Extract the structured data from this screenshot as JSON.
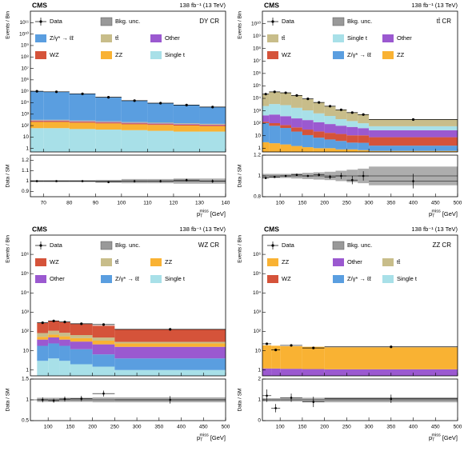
{
  "chart_data": [
    {
      "type": "histogram",
      "experiment": "CMS",
      "lumi": "138 fb⁻¹ (13 TeV)",
      "region": "DY CR",
      "y_label": "Events / Bin",
      "ratio_label": "Data / SM",
      "x_label": [
        "p",
        "T",
        "miss",
        "[GeV]"
      ],
      "bins": [
        65,
        70,
        80,
        90,
        100,
        110,
        120,
        130,
        140
      ],
      "xlim": [
        65,
        140
      ],
      "xticks": [
        70,
        80,
        90,
        100,
        110,
        120,
        130,
        140
      ],
      "log_y": true,
      "ylim": [
        0.5,
        1000000000000.0
      ],
      "yticks": [
        1,
        10,
        {
          "value": 100,
          "label": "10²"
        },
        {
          "value": 1000,
          "label": "10³"
        },
        {
          "value": 10000,
          "label": "10⁴"
        },
        {
          "value": 100000,
          "label": "10⁵"
        },
        {
          "value": 1000000,
          "label": "10⁶"
        },
        {
          "value": 10000000,
          "label": "10⁷"
        },
        {
          "value": 100000000,
          "label": "10⁸"
        },
        {
          "value": 1000000000,
          "label": "10⁹"
        },
        {
          "value": 10000000000,
          "label": "10¹⁰"
        },
        {
          "value": 100000000000,
          "label": "10¹¹"
        }
      ],
      "data": {
        "name": "Data",
        "values": [
          100300,
          90200,
          60150,
          29900,
          15180,
          9150,
          6230,
          4180
        ]
      },
      "unc_name": "Bkg. unc.",
      "series": [
        {
          "name": "Z/γ* → ℓℓ",
          "color": "#5a9ee0",
          "values": [
            100000,
            90000,
            60000,
            30000,
            15000,
            9000,
            6000,
            4000
          ]
        },
        {
          "name": "tt̄",
          "color": "#c8bd8a",
          "values": [
            40,
            40,
            35,
            30,
            28,
            25,
            22,
            20
          ]
        },
        {
          "name": "Other",
          "color": "#9b59d0",
          "values": [
            30,
            30,
            25,
            22,
            20,
            18,
            15,
            14
          ]
        },
        {
          "name": "WZ",
          "color": "#d5533a",
          "values": [
            40,
            40,
            35,
            30,
            25,
            22,
            20,
            18
          ]
        },
        {
          "name": "ZZ",
          "color": "#f9b233",
          "values": [
            150,
            150,
            130,
            110,
            90,
            80,
            70,
            60
          ]
        },
        {
          "name": "Single t",
          "color": "#a8e0e8",
          "values": [
            60,
            60,
            50,
            45,
            40,
            35,
            30,
            30
          ]
        }
      ],
      "ratio": {
        "values": [
          1.0,
          1.0,
          1.0,
          0.99,
          1.0,
          1.0,
          1.01,
          1.0
        ],
        "errors": [
          0.004,
          0.004,
          0.005,
          0.006,
          0.008,
          0.01,
          0.013,
          0.016
        ],
        "unc": [
          0.01,
          0.01,
          0.01,
          0.012,
          0.02,
          0.02,
          0.025,
          0.025
        ],
        "ylim": [
          0.85,
          1.25
        ],
        "yticks": [
          0.9,
          1,
          1.1,
          1.2
        ]
      }
    },
    {
      "type": "histogram",
      "experiment": "CMS",
      "lumi": "138 fb⁻¹ (13 TeV)",
      "region": "tt̄ CR",
      "y_label": "Events / Bin",
      "ratio_label": "Data / SM",
      "x_label": [
        "p",
        "T",
        "miss",
        "[GeV]"
      ],
      "bins": [
        60,
        75,
        100,
        125,
        150,
        175,
        200,
        225,
        250,
        275,
        300,
        500
      ],
      "xlim": [
        60,
        500
      ],
      "xticks": [
        100,
        150,
        200,
        250,
        300,
        350,
        400,
        450,
        500
      ],
      "log_y": true,
      "ylim": [
        0.5,
        100000000000.0
      ],
      "yticks": [
        1,
        10,
        {
          "value": 100,
          "label": "10²"
        },
        {
          "value": 1000,
          "label": "10³"
        },
        {
          "value": 10000,
          "label": "10⁴"
        },
        {
          "value": 100000,
          "label": "10⁵"
        },
        {
          "value": 1000000,
          "label": "10⁶"
        },
        {
          "value": 10000000,
          "label": "10⁷"
        },
        {
          "value": 100000000,
          "label": "10⁸"
        },
        {
          "value": 1000000000,
          "label": "10⁹"
        },
        {
          "value": 10000000000,
          "label": "10¹⁰"
        }
      ],
      "data": {
        "name": "Data",
        "values": [
          22000,
          33200,
          28000,
          17100,
          9100,
          4700,
          2350,
          1210,
          720,
          500,
          200
        ]
      },
      "unc_name": "Bkg. unc.",
      "series": [
        {
          "name": "tt̄",
          "color": "#c8bd8a",
          "values": [
            20000,
            30000,
            25000,
            15000,
            8000,
            4000,
            2000,
            1000,
            600,
            400,
            150
          ]
        },
        {
          "name": "Single t",
          "color": "#a8e0e8",
          "values": [
            2000,
            3000,
            2500,
            1500,
            900,
            500,
            300,
            150,
            100,
            60,
            30
          ]
        },
        {
          "name": "Other",
          "color": "#9b59d0",
          "values": [
            300,
            400,
            300,
            200,
            150,
            100,
            70,
            50,
            40,
            30,
            20
          ]
        },
        {
          "name": "WZ",
          "color": "#d5533a",
          "values": [
            30,
            40,
            30,
            25,
            20,
            15,
            12,
            10,
            8,
            8,
            6
          ]
        },
        {
          "name": "Z/γ* → ℓℓ",
          "color": "#5a9ee0",
          "values": [
            100,
            60,
            40,
            20,
            10,
            6,
            4,
            3,
            2,
            2,
            1
          ]
        },
        {
          "name": "ZZ",
          "color": "#f9b233",
          "values": [
            3,
            2.5,
            2,
            1.5,
            1.2,
            1,
            1,
            0.8,
            0.8,
            0.7,
            0.6
          ]
        }
      ],
      "ratio": {
        "values": [
          0.98,
          0.99,
          1.0,
          1.01,
          1.0,
          1.01,
          0.99,
          1.0,
          0.96,
          1.0,
          0.95
        ],
        "errors": [
          0.008,
          0.006,
          0.006,
          0.008,
          0.01,
          0.015,
          0.02,
          0.03,
          0.04,
          0.045,
          0.07
        ],
        "unc": [
          0.02,
          0.02,
          0.02,
          0.025,
          0.03,
          0.035,
          0.04,
          0.05,
          0.06,
          0.07,
          0.09
        ],
        "ylim": [
          0.8,
          1.2
        ],
        "yticks": [
          0.8,
          1,
          1.2
        ]
      }
    },
    {
      "type": "histogram",
      "experiment": "CMS",
      "lumi": "138 fb⁻¹ (13 TeV)",
      "region": "WZ CR",
      "y_label": "Events / Bin",
      "ratio_label": "Data / SM",
      "x_label": [
        "p",
        "T",
        "miss",
        "[GeV]"
      ],
      "bins": [
        75,
        100,
        125,
        150,
        200,
        250,
        500
      ],
      "xlim": [
        60,
        500
      ],
      "xticks": [
        100,
        150,
        200,
        250,
        300,
        350,
        400,
        450,
        500
      ],
      "log_y": true,
      "ylim": [
        0.5,
        10000000.0
      ],
      "yticks": [
        1,
        10,
        {
          "value": 100,
          "label": "10²"
        },
        {
          "value": 1000,
          "label": "10³"
        },
        {
          "value": 10000,
          "label": "10⁴"
        },
        {
          "value": 100000,
          "label": "10⁵"
        },
        {
          "value": 1000000,
          "label": "10⁶"
        }
      ],
      "data": {
        "name": "Data",
        "values": [
          283,
          352,
          312,
          252,
          229,
          129
        ]
      },
      "unc_name": "Bkg. unc.",
      "series": [
        {
          "name": "WZ",
          "color": "#d5533a",
          "values": [
            200,
            250,
            220,
            180,
            150,
            100
          ]
        },
        {
          "name": "tt̄",
          "color": "#c8bd8a",
          "values": [
            30,
            40,
            30,
            20,
            15,
            5
          ]
        },
        {
          "name": "ZZ",
          "color": "#f9b233",
          "values": [
            15,
            20,
            18,
            15,
            12,
            8
          ]
        },
        {
          "name": "Other",
          "color": "#9b59d0",
          "values": [
            20,
            25,
            20,
            18,
            15,
            12
          ]
        },
        {
          "name": "Z/γ* → ℓℓ",
          "color": "#5a9ee0",
          "values": [
            15,
            20,
            15,
            10,
            5,
            3
          ]
        },
        {
          "name": "Single t",
          "color": "#a8e0e8",
          "values": [
            3,
            4,
            3,
            2,
            1.5,
            1
          ]
        }
      ],
      "ratio": {
        "values": [
          1.0,
          0.98,
          1.02,
          1.03,
          1.15,
          1.0
        ],
        "errors": [
          0.06,
          0.05,
          0.06,
          0.065,
          0.07,
          0.09
        ],
        "unc": [
          0.05,
          0.05,
          0.05,
          0.05,
          0.06,
          0.06
        ],
        "ylim": [
          0.5,
          1.5
        ],
        "yticks": [
          0.5,
          1,
          1.5
        ]
      }
    },
    {
      "type": "histogram",
      "experiment": "CMS",
      "lumi": "138 fb⁻¹ (13 TeV)",
      "region": "ZZ CR",
      "y_label": "Events / Bin",
      "ratio_label": "Data / SM",
      "x_label": [
        "p",
        "T",
        "miss",
        "[GeV]"
      ],
      "bins": [
        60,
        80,
        100,
        150,
        200,
        500
      ],
      "xlim": [
        60,
        500
      ],
      "xticks": [
        100,
        150,
        200,
        250,
        300,
        350,
        400,
        450,
        500
      ],
      "log_y": true,
      "ylim": [
        0.5,
        10000000.0
      ],
      "yticks": [
        1,
        10,
        {
          "value": 100,
          "label": "10²"
        },
        {
          "value": 1000,
          "label": "10³"
        },
        {
          "value": 10000,
          "label": "10⁴"
        },
        {
          "value": 100000,
          "label": "10⁵"
        },
        {
          "value": 1000000,
          "label": "10⁶"
        }
      ],
      "data": {
        "name": "Data",
        "values": [
          23,
          11,
          19,
          14,
          16
        ]
      },
      "unc_name": "Bkg. unc.",
      "series": [
        {
          "name": "ZZ",
          "color": "#f9b233",
          "values": [
            18,
            17,
            16,
            15,
            14
          ]
        },
        {
          "name": "Other",
          "color": "#9b59d0",
          "values": [
            1,
            1,
            1,
            1,
            1
          ]
        },
        {
          "name": "tt̄",
          "color": "#c8bd8a",
          "values": [
            0.05,
            0.05,
            0.04,
            0.03,
            0.02
          ]
        },
        {
          "name": "WZ",
          "color": "#d5533a",
          "values": [
            0.1,
            0.1,
            0.08,
            0.06,
            0.05
          ]
        },
        {
          "name": "Z/γ* → ℓℓ",
          "color": "#5a9ee0",
          "values": [
            0.05,
            0.04,
            0.03,
            0.02,
            0.01
          ]
        },
        {
          "name": "Single t",
          "color": "#a8e0e8",
          "values": [
            0.01,
            0.01,
            0.01,
            0.01,
            0.01
          ]
        }
      ],
      "ratio": {
        "values": [
          1.2,
          0.6,
          1.1,
          0.9,
          1.05
        ],
        "errors": [
          0.3,
          0.2,
          0.2,
          0.25,
          0.2
        ],
        "unc": [
          0.08,
          0.08,
          0.08,
          0.1,
          0.12
        ],
        "ylim": [
          0,
          2
        ],
        "yticks": [
          0,
          1,
          2
        ]
      }
    }
  ]
}
